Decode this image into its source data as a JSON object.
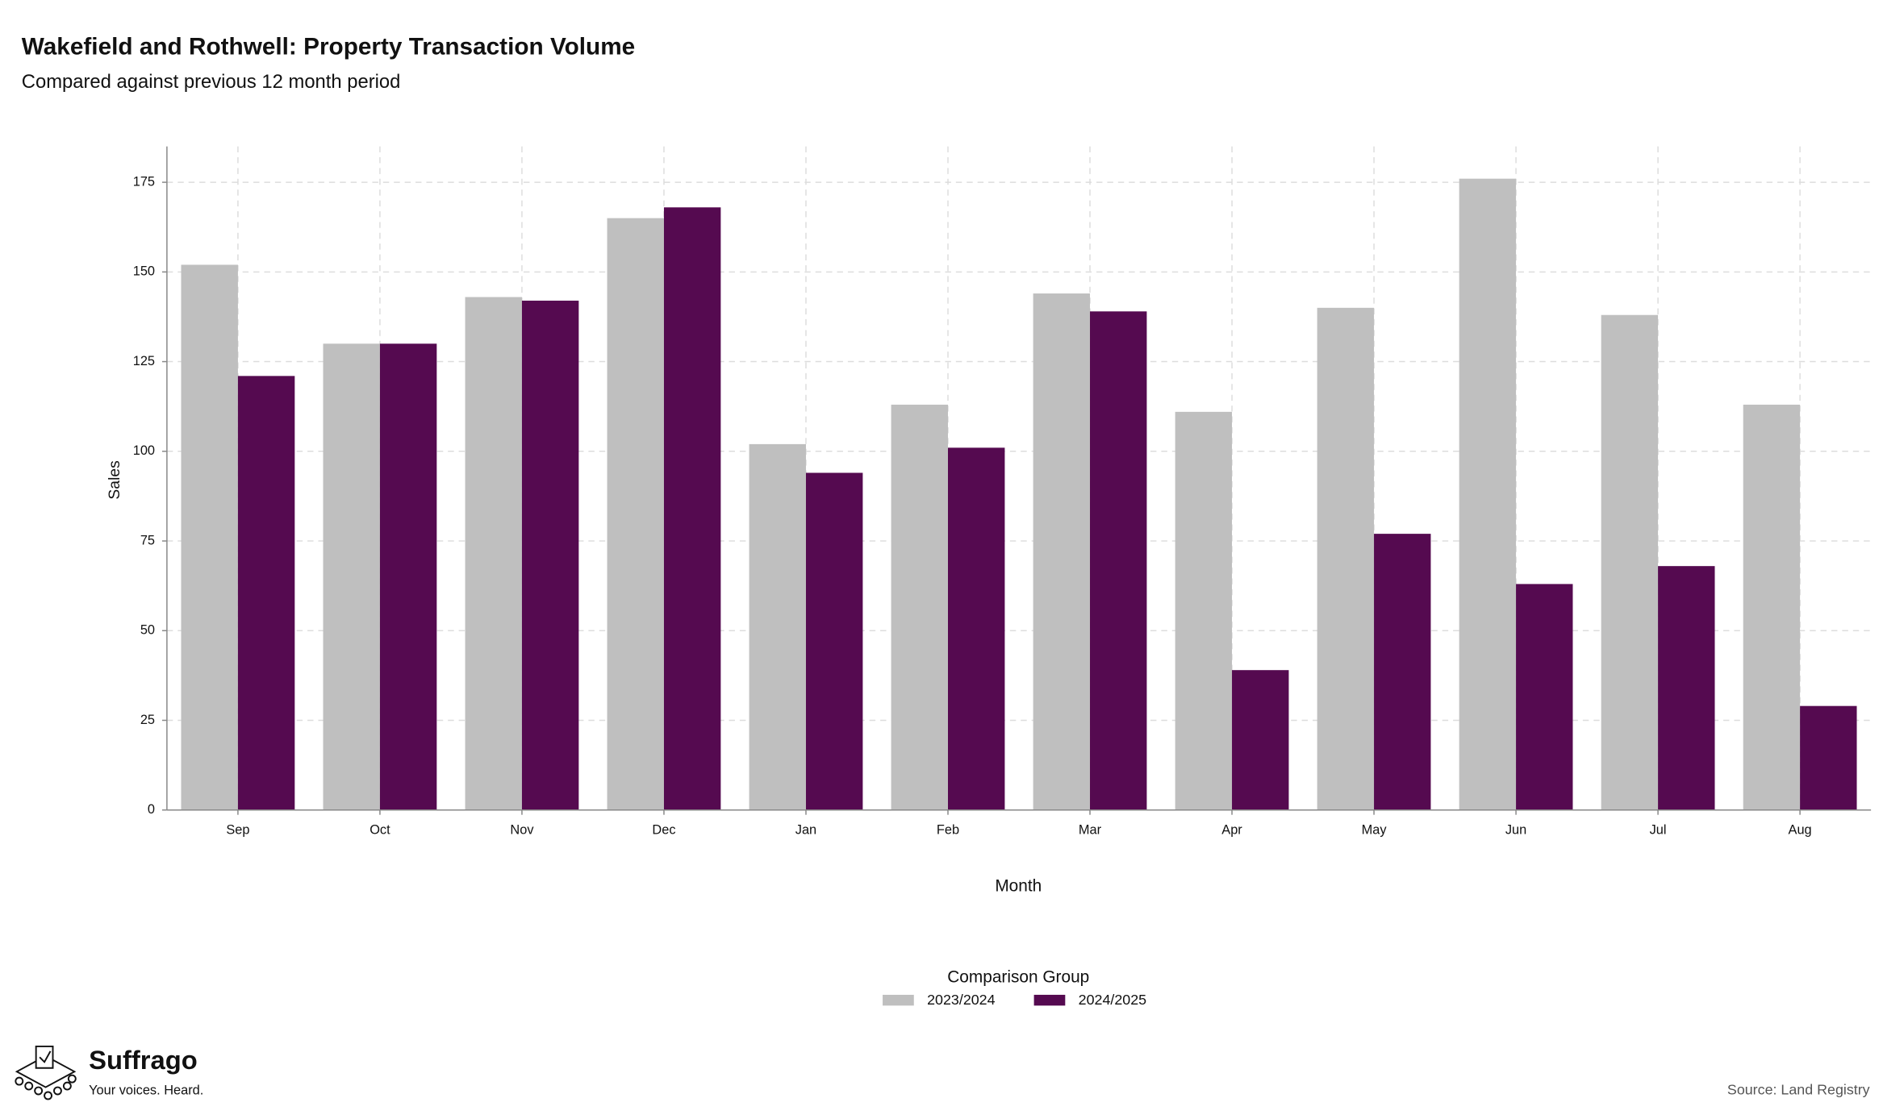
{
  "chart_data": {
    "type": "bar",
    "title": "Wakefield and Rothwell: Property Transaction Volume",
    "subtitle": "Compared against previous 12 month period",
    "x_label": "Month",
    "y_label": "Sales",
    "categories": [
      "Sep",
      "Oct",
      "Nov",
      "Dec",
      "Jan",
      "Feb",
      "Mar",
      "Apr",
      "May",
      "Jun",
      "Jul",
      "Aug"
    ],
    "series": [
      {
        "name": "2023/2024",
        "color": "#bfbfbf",
        "values": [
          152,
          130,
          143,
          165,
          102,
          113,
          144,
          111,
          140,
          176,
          138,
          113
        ]
      },
      {
        "name": "2024/2025",
        "color": "#550a50",
        "values": [
          121,
          130,
          142,
          168,
          94,
          101,
          139,
          39,
          77,
          63,
          68,
          29
        ]
      }
    ],
    "ylim": [
      0,
      185
    ],
    "yticks": [
      0,
      25,
      50,
      75,
      100,
      125,
      150,
      175
    ],
    "grid": true,
    "legend_title": "Comparison Group",
    "legend_position": "bottom",
    "source": "Source: Land Registry",
    "brand": {
      "name": "Suffrago",
      "tagline": "Your voices. Heard."
    }
  }
}
